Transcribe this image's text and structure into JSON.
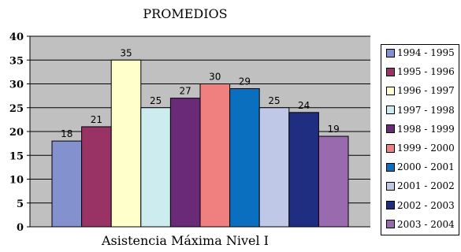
{
  "chart_data": {
    "type": "bar",
    "title": "PROMEDIOS",
    "xlabel": "Asistencia Máxima Nivel I",
    "ylabel": "",
    "ylim": [
      0,
      40
    ],
    "yticks": [
      0,
      5,
      10,
      15,
      20,
      25,
      30,
      35,
      40
    ],
    "grid": true,
    "legend_position": "right",
    "series": [
      {
        "name": "1994 - 1995",
        "value": 18,
        "color": "#8491cf"
      },
      {
        "name": "1995 - 1996",
        "value": 21,
        "color": "#993366"
      },
      {
        "name": "1996 - 1997",
        "value": 35,
        "color": "#ffffcc"
      },
      {
        "name": "1997 - 1998",
        "value": 25,
        "color": "#ccecf0"
      },
      {
        "name": "1998 - 1999",
        "value": 27,
        "color": "#6a2a78"
      },
      {
        "name": "1999 - 2000",
        "value": 30,
        "color": "#f08080"
      },
      {
        "name": "2000 - 2001",
        "value": 29,
        "color": "#0b6fc0"
      },
      {
        "name": "2001 - 2002",
        "value": 25,
        "color": "#c0c8e8"
      },
      {
        "name": "2002 - 2003",
        "value": 24,
        "color": "#1f2e80"
      },
      {
        "name": "2003 - 2004",
        "value": 19,
        "color": "#9a6aae"
      }
    ],
    "plot_background": "#c0c0c0"
  }
}
